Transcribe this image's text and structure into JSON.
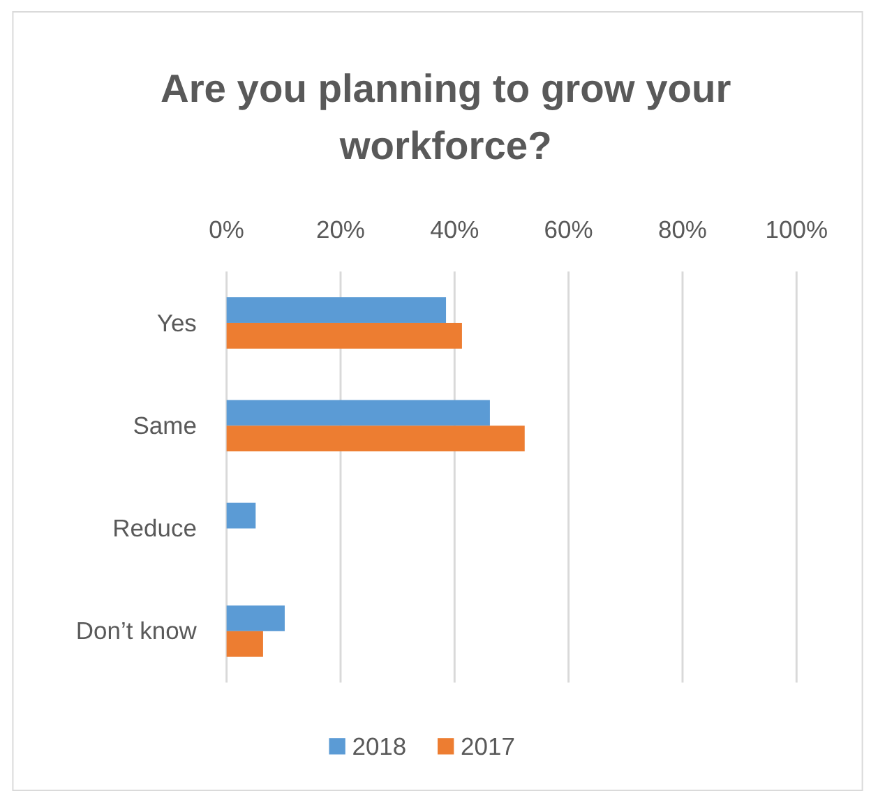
{
  "chart_data": {
    "type": "bar",
    "orientation": "horizontal",
    "title": "Are you planning to grow your workforce?",
    "categories": [
      "Yes",
      "Same",
      "Reduce",
      "Don’t know"
    ],
    "series": [
      {
        "name": "2018",
        "color": "#5b9bd5",
        "values": [
          38.5,
          46.2,
          5.1,
          10.2
        ]
      },
      {
        "name": "2017",
        "color": "#ed7d31",
        "values": [
          41.3,
          52.3,
          null,
          6.4
        ]
      }
    ],
    "xlim": [
      0,
      100
    ],
    "xticks": [
      {
        "value": 0,
        "label": "0%"
      },
      {
        "value": 20,
        "label": "20%"
      },
      {
        "value": 40,
        "label": "40%"
      },
      {
        "value": 60,
        "label": "60%"
      },
      {
        "value": 80,
        "label": "80%"
      },
      {
        "value": 100,
        "label": "100%"
      }
    ],
    "grid": "x",
    "legend": "bottom"
  }
}
